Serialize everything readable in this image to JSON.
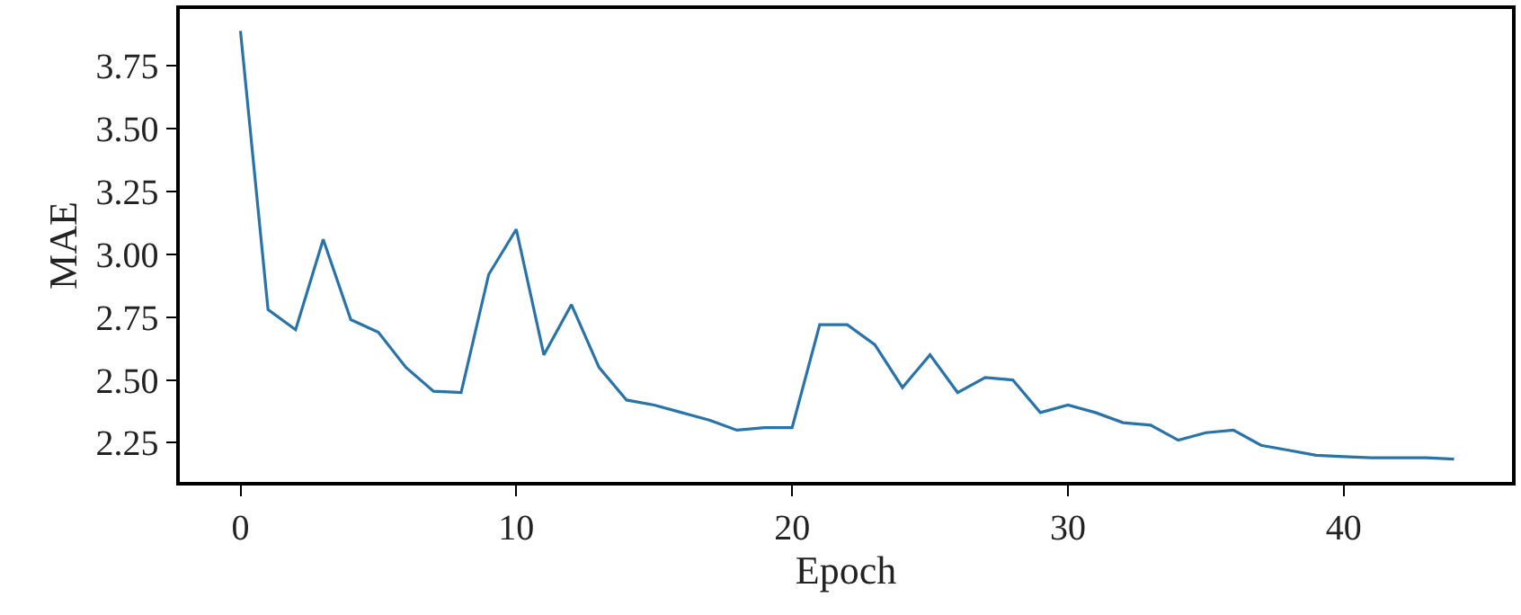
{
  "chart_data": {
    "type": "line",
    "xlabel": "Epoch",
    "ylabel": "MAE",
    "x": [
      0,
      1,
      2,
      3,
      4,
      5,
      6,
      7,
      8,
      9,
      10,
      11,
      12,
      13,
      14,
      15,
      16,
      17,
      18,
      19,
      20,
      21,
      22,
      23,
      24,
      25,
      26,
      27,
      28,
      29,
      30,
      31,
      32,
      33,
      34,
      35,
      36,
      37,
      38,
      39,
      40,
      41,
      42,
      43,
      44
    ],
    "series": [
      {
        "color": "#2a73a8",
        "values": [
          3.89,
          2.78,
          2.7,
          3.06,
          2.74,
          2.69,
          2.55,
          2.455,
          2.45,
          2.92,
          3.1,
          2.6,
          2.8,
          2.55,
          2.42,
          2.4,
          2.37,
          2.34,
          2.3,
          2.31,
          2.31,
          2.72,
          2.72,
          2.64,
          2.47,
          2.6,
          2.45,
          2.51,
          2.5,
          2.37,
          2.4,
          2.37,
          2.33,
          2.32,
          2.26,
          2.29,
          2.3,
          2.24,
          2.22,
          2.2,
          2.195,
          2.19,
          2.19,
          2.19,
          2.185
        ]
      }
    ],
    "xlim": [
      -2.2,
      46.1
    ],
    "xticks": [
      0,
      10,
      20,
      30,
      40
    ],
    "ylim": [
      2.094,
      3.977
    ],
    "yticks": [
      {
        "value": 2.25,
        "label": "2.25"
      },
      {
        "value": 2.5,
        "label": "2.50"
      },
      {
        "value": 2.75,
        "label": "2.75"
      },
      {
        "value": 3.0,
        "label": "3.00"
      },
      {
        "value": 3.25,
        "label": "3.25"
      },
      {
        "value": 3.5,
        "label": "3.50"
      },
      {
        "value": 3.75,
        "label": "3.75"
      }
    ],
    "legend": false,
    "marker": "none",
    "line_style": "solid"
  }
}
